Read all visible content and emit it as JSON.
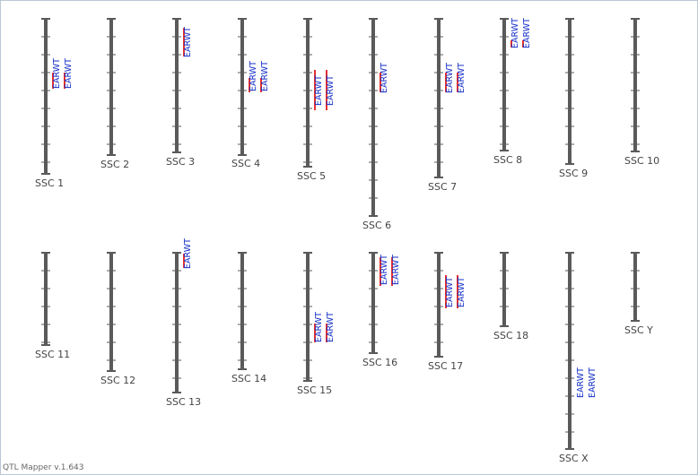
{
  "app": {
    "footer": "QTL Mapper v.1.643"
  },
  "colors": {
    "chromosome": "#5a5a5a",
    "qtl_bar": "#e53030",
    "qtl_label": "#1530c8",
    "chr_label": "#444444"
  },
  "chromosomes": [
    {
      "id": "SSC 1",
      "qtls": [
        {
          "trait": "EARWT"
        },
        {
          "trait": "EARWT"
        }
      ]
    },
    {
      "id": "SSC 2",
      "qtls": []
    },
    {
      "id": "SSC 3",
      "qtls": [
        {
          "trait": "EARWT"
        }
      ]
    },
    {
      "id": "SSC 4",
      "qtls": [
        {
          "trait": "EARWT"
        },
        {
          "trait": "EARWT"
        }
      ]
    },
    {
      "id": "SSC 5",
      "qtls": [
        {
          "trait": "EARWT"
        },
        {
          "trait": "EARWT"
        }
      ]
    },
    {
      "id": "SSC 6",
      "qtls": [
        {
          "trait": "EARWT"
        }
      ]
    },
    {
      "id": "SSC 7",
      "qtls": [
        {
          "trait": "EARWT"
        },
        {
          "trait": "EARWT"
        }
      ]
    },
    {
      "id": "SSC 8",
      "qtls": [
        {
          "trait": "EARWT"
        },
        {
          "trait": "EARWT"
        }
      ]
    },
    {
      "id": "SSC 9",
      "qtls": []
    },
    {
      "id": "SSC 10",
      "qtls": []
    },
    {
      "id": "SSC 11",
      "qtls": []
    },
    {
      "id": "SSC 12",
      "qtls": []
    },
    {
      "id": "SSC 13",
      "qtls": [
        {
          "trait": "EARWT"
        }
      ]
    },
    {
      "id": "SSC 14",
      "qtls": []
    },
    {
      "id": "SSC 15",
      "qtls": [
        {
          "trait": "EARWT"
        },
        {
          "trait": "EARWT"
        }
      ]
    },
    {
      "id": "SSC 16",
      "qtls": [
        {
          "trait": "EARWT"
        },
        {
          "trait": "EARWT"
        }
      ]
    },
    {
      "id": "SSC 17",
      "qtls": [
        {
          "trait": "EARWT"
        },
        {
          "trait": "EARWT"
        }
      ]
    },
    {
      "id": "SSC 18",
      "qtls": []
    },
    {
      "id": "SSC X",
      "qtls": [
        {
          "trait": "EARWT"
        },
        {
          "trait": "EARWT"
        }
      ]
    },
    {
      "id": "SSC Y",
      "qtls": []
    }
  ]
}
